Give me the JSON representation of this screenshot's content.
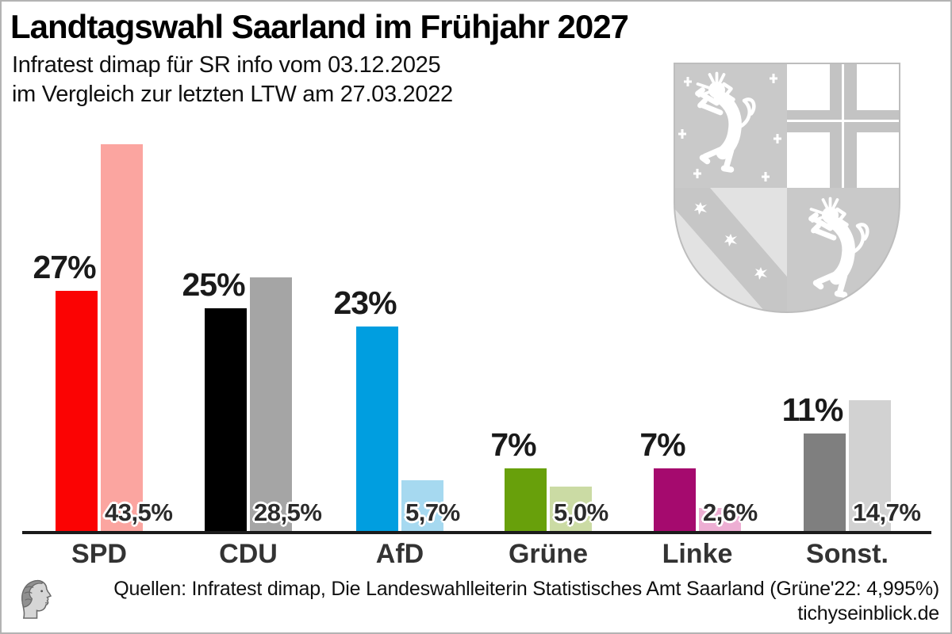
{
  "header": {
    "title": "Landtagswahl Saarland im Frühjahr 2027",
    "subtitle_line1": "Infratest dimap für SR info vom 03.12.2025",
    "subtitle_line2": "im Vergleich zur letzten LTW am 27.03.2022"
  },
  "chart_data": {
    "type": "bar",
    "title": "Landtagswahl Saarland im Frühjahr 2027",
    "categories": [
      "SPD",
      "CDU",
      "AfD",
      "Grüne",
      "Linke",
      "Sonst."
    ],
    "series": [
      {
        "name": "Umfrage 03.12.2025",
        "values": [
          27,
          25,
          23,
          7,
          7,
          11
        ],
        "labels": [
          "27%",
          "25%",
          "23%",
          "7%",
          "7%",
          "11%"
        ],
        "colors": [
          "#fb0303",
          "#000000",
          "#009ee0",
          "#68a00b",
          "#a50a6e",
          "#7f7f7f"
        ]
      },
      {
        "name": "LTW 27.03.2022",
        "values": [
          43.5,
          28.5,
          5.7,
          5.0,
          2.6,
          14.7
        ],
        "labels": [
          "43,5%",
          "28,5%",
          "5,7%",
          "5,0%",
          "2,6%",
          "14,7%"
        ],
        "colors": [
          "#fba5a0",
          "#a5a5a5",
          "#a6d9f0",
          "#cbdba4",
          "#edaed3",
          "#d2d2d2"
        ]
      }
    ],
    "ylim": [
      0,
      45
    ],
    "grid": false,
    "legend": "none",
    "xlabel": "",
    "ylabel": ""
  },
  "footer": {
    "sources": "Quellen: Infratest dimap, Die Landeswahlleiterin Statistisches Amt Saarland (Grüne'22: 4,995%)",
    "site": "tichyseinblick.de"
  },
  "icons": {
    "coat_of_arms": "saarland-coat-of-arms",
    "logo": "tichys-einblick-head-logo"
  }
}
